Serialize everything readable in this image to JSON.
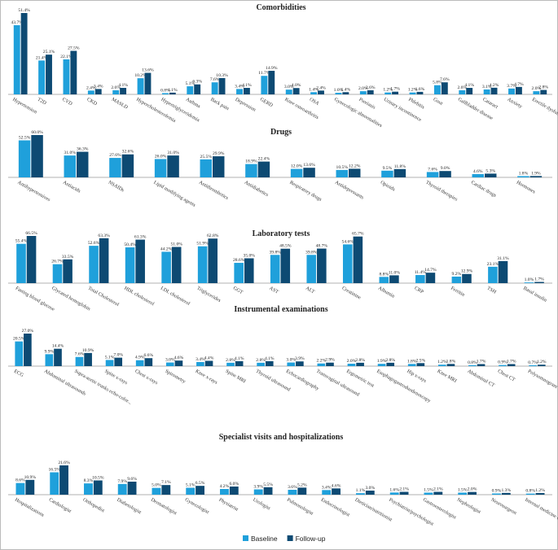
{
  "chart_data": [
    {
      "type": "bar",
      "title": "Comorbidities",
      "categories": [
        "Hypertension",
        "T2D",
        "CVD",
        "CKD",
        "MASLD",
        "Hypercholesterolemia",
        "Hypertriglyceridemia",
        "Asthma",
        "Back pain",
        "Depression",
        "GERD",
        "Knee osteoarthritis",
        "OSA",
        "Gynecologic abnormalities",
        "Psoriasis",
        "Urinary incontinence",
        "Phlebitis",
        "Gout",
        "Gallbladder disease",
        "Cataract",
        "Anxiety",
        "Erectile dysfunction"
      ],
      "series": [
        {
          "name": "Baseline",
          "color": "#1fa0db",
          "values": [
            43.7,
            21.4,
            22.1,
            2.4,
            2.6,
            10.2,
            0.8,
            5.1,
            7.6,
            3.4,
            11.7,
            3,
            1.4,
            1,
            2,
            1.2,
            1.2,
            5.8,
            2.6,
            3.1,
            3.7,
            2
          ],
          "value_labels": [
            "43.7%",
            "21.4%",
            "22.1%",
            "2.4%",
            "2.6%",
            "10.2%",
            "0.8%",
            "5.1%",
            "7.6%",
            "3.4%",
            "11.7%",
            "3.0%",
            "1.4%",
            "1.0%",
            "2.0%",
            "1.2%",
            "1.2%",
            "5.8%",
            "2.6%",
            "3.1%",
            "3.7%",
            "2.0%"
          ]
        },
        {
          "name": "Follow-up",
          "color": "#0d4a73",
          "values": [
            51.4,
            25.1,
            27.5,
            3.4,
            4.1,
            13.6,
            1.1,
            6.3,
            10.3,
            4.1,
            14.9,
            4,
            2.4,
            1.4,
            2.6,
            1.7,
            1.6,
            7.6,
            4.1,
            4.2,
            4.7,
            2.8
          ],
          "value_labels": [
            "51.4%",
            "25.1%",
            "27.5%",
            "3.4%",
            "4.1%",
            "13.6%",
            "1.1%",
            "6.3%",
            "10.3%",
            "4.1%",
            "14.9%",
            "4.0%",
            "2.4%",
            "1.4%",
            "2.6%",
            "1.7%",
            "1.6%",
            "7.6%",
            "4.1%",
            "4.2%",
            "4.7%",
            "2.8%"
          ]
        }
      ]
    },
    {
      "type": "bar",
      "title": "Drugs",
      "categories": [
        "Antihypertensives",
        "Antiacids",
        "NSAIDs",
        "Lipid modifying agents",
        "Antithrombotics",
        "Antidiabetics",
        "Respiratory drugs",
        "Antidepressants",
        "Opioids",
        "Thyroid therapies",
        "Cardiac drugs",
        "Hormones"
      ],
      "series": [
        {
          "name": "Baseline",
          "color": "#1fa0db",
          "values": [
            52.5,
            31,
            27.6,
            26,
            25.5,
            18.9,
            12,
            10.5,
            9.5,
            7.6,
            4.6,
            1.8
          ],
          "value_labels": [
            "52.5%",
            "31.0%",
            "27.6%",
            "26.0%",
            "25.5%",
            "18.9%",
            "12.0%",
            "10.5%",
            "9.5%",
            "7.6%",
            "4.6%",
            "1.8%"
          ]
        },
        {
          "name": "Follow-up",
          "color": "#0d4a73",
          "values": [
            60,
            36.3,
            32.6,
            31,
            29.9,
            22.4,
            13.6,
            12.2,
            11.8,
            9,
            5.3,
            1.9
          ],
          "value_labels": [
            "60.0%",
            "36.3%",
            "32.6%",
            "31.0%",
            "29.9%",
            "22.4%",
            "13.6%",
            "12.2%",
            "11.8%",
            "9.0%",
            "5.3%",
            "1.9%"
          ]
        }
      ]
    },
    {
      "type": "bar",
      "title": "Laboratory tests",
      "categories": [
        "Fasting blood glucose",
        "Glycated hemoglobin",
        "Total Cholesterol",
        "HDL cholesterol",
        "LDL cholesterol",
        "Triglycerides",
        "GGT",
        "AST",
        "ALT",
        "Creatinine",
        "Albumin",
        "CRP",
        "Ferritin",
        "TSH",
        "Basal insulin"
      ],
      "series": [
        {
          "name": "Baseline",
          "color": "#1fa0db",
          "values": [
            55.4,
            26.7,
            52.6,
            50.4,
            44.2,
            51.9,
            28.6,
            39.8,
            39.8,
            54.6,
            8.8,
            11.4,
            9.2,
            23.1,
            1
          ],
          "value_labels": [
            "55.4%",
            "26.7%",
            "52.6%",
            "50.4%",
            "44.2%",
            "51.9%",
            "28.6%",
            "39.8%",
            "39.8%",
            "54.6%",
            "8.8%",
            "11.4%",
            "9.2%",
            "23.1%",
            "1.0%"
          ]
        },
        {
          "name": "Follow-up",
          "color": "#0d4a73",
          "values": [
            66.5,
            33.5,
            63.3,
            61.3,
            51,
            62.8,
            35,
            48.5,
            48.7,
            65.7,
            11,
            14.7,
            12.9,
            31.1,
            1.7
          ],
          "value_labels": [
            "66.5%",
            "33.5%",
            "63.3%",
            "61.3%",
            "51.0%",
            "62.8%",
            "35.0%",
            "48.5%",
            "48.7%",
            "65.7%",
            "11.0%",
            "14.7%",
            "12.9%",
            "31.1%",
            "1.7%"
          ]
        }
      ]
    },
    {
      "type": "bar",
      "title": "Instrumental examinations",
      "categories": [
        "ECG",
        "Abdominal ultrasounds",
        "Supra-aortic trunks echo-color...",
        "Spine x-rays",
        "Chest x-rays",
        "Spirometry",
        "Knee x-rays",
        "Spine MRI",
        "Thyroid ultrasound",
        "Echocardiography",
        "Transvaginal ultrasound",
        "Ergometric test",
        "Esophagogastroduodenoscopy",
        "Hip x-rays",
        "Knee MRI",
        "Abdominal CT",
        "Chest CT",
        "Polysomnogram"
      ],
      "series": [
        {
          "name": "Baseline",
          "color": "#1fa0db",
          "values": [
            20.5,
            9.9,
            7.6,
            5.1,
            4.9,
            3,
            3.4,
            2.8,
            2.8,
            3,
            2.2,
            2,
            1.9,
            1.8,
            1.2,
            0.8,
            0.9,
            0.7
          ],
          "value_labels": [
            "20.5%",
            "9.9%",
            "7.6%",
            "5.1%",
            "4.9%",
            "3.0%",
            "3.4%",
            "2.8%",
            "2.8%",
            "3.0%",
            "2.2%",
            "2.0%",
            "1.9%",
            "1.8%",
            "1.2%",
            "0.8%",
            "0.9%",
            "0.7%"
          ]
        },
        {
          "name": "Follow-up",
          "color": "#0d4a73",
          "values": [
            27,
            14.4,
            10.9,
            7,
            6.6,
            4.6,
            4.4,
            4.1,
            4.1,
            3.9,
            2.9,
            2.8,
            2.8,
            2.5,
            1.8,
            1.7,
            1.7,
            1.2
          ],
          "value_labels": [
            "27.0%",
            "14.4%",
            "10.9%",
            "7.0%",
            "6.6%",
            "4.6%",
            "4.4%",
            "4.1%",
            "4.1%",
            "3.9%",
            "2.9%",
            "2.8%",
            "2.8%",
            "2.5%",
            "1.8%",
            "1.7%",
            "1.7%",
            "1.2%"
          ]
        }
      ]
    },
    {
      "type": "bar",
      "title": "Specialist visits and hospitalizations",
      "categories": [
        "Hospitalizations",
        "Cardiologist",
        "Orthopedist",
        "Diabetologist",
        "Dermatologist",
        "Gynecologist",
        "Physiatrist",
        "Urologist",
        "Pulmonologist",
        "Endocrinologist",
        "Dietician/nutritionist",
        "Psychiatrist/psychologist",
        "Gastroenterologist",
        "Nephrologist",
        "Neurosurgeon",
        "Internal medicine doctor"
      ],
      "series": [
        {
          "name": "Baseline",
          "color": "#1fa0db",
          "values": [
            8.6,
            16.5,
            8.3,
            7.9,
            5,
            5.1,
            4.2,
            3.9,
            3.6,
            3.4,
            1.1,
            1.6,
            1.5,
            1.5,
            0.9,
            0.8
          ],
          "value_labels": [
            "8.6%",
            "16.5%",
            "8.3%",
            "7.9%",
            "5.0%",
            "5.1%",
            "4.2%",
            "3.9%",
            "3.6%",
            "3.4%",
            "1.1%",
            "1.6%",
            "1.5%",
            "1.5%",
            "0.9%",
            "0.8%"
          ]
        },
        {
          "name": "Follow-up",
          "color": "#0d4a73",
          "values": [
            10.9,
            21.6,
            10.5,
            9.6,
            7.1,
            6.5,
            6,
            5.5,
            5.2,
            4.6,
            3,
            2.1,
            2.1,
            2,
            1.3,
            1.2
          ],
          "value_labels": [
            "10.9%",
            "21.6%",
            "10.5%",
            "9.6%",
            "7.1%",
            "6.5%",
            "6.0%",
            "5.5%",
            "5.2%",
            "4.6%",
            "3.0%",
            "2.1%",
            "2.1%",
            "2.0%",
            "1.3%",
            "1.2%"
          ]
        }
      ]
    }
  ]
}
